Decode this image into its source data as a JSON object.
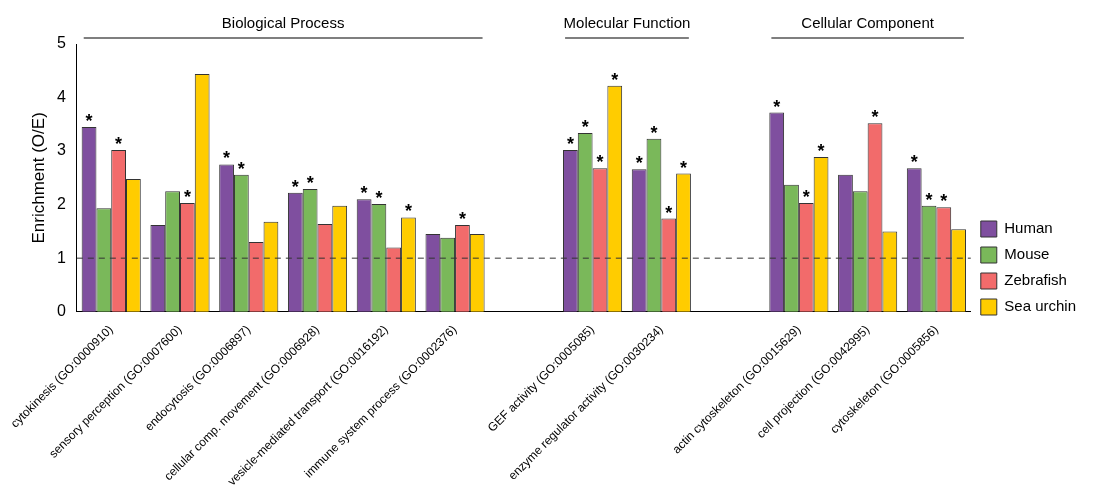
{
  "chart_data": {
    "type": "bar",
    "ylabel": "Enrichment (O/E)",
    "categories": [
      "cytokinesis (GO:0000910)",
      "sensory perception (GO:0007600)",
      "endocytosis (GO:0006897)",
      "cellular comp. movement (GO:0006928)",
      "vesicle-mediated transport (GO:0016192)",
      "immune system process (GO:0002376)",
      null,
      "GEF activity (GO:0005085)",
      "enzyme regulator activity (GO:0030234)",
      null,
      "actin cytoskeleton (GO:0015629)",
      "cell projection (GO:0042995)",
      "cytoskeleton (GO:0005856)"
    ],
    "series": [
      {
        "name": "Human",
        "color": "#7f4f9f",
        "values": [
          3.45,
          1.62,
          2.75,
          2.22,
          2.1,
          1.45,
          null,
          3.02,
          2.66,
          null,
          3.72,
          2.56,
          2.68
        ],
        "value_labels": [
          "*",
          null,
          "*",
          "*",
          "*",
          null,
          null,
          "*",
          "*",
          null,
          "*",
          null,
          "*"
        ]
      },
      {
        "name": "Mouse",
        "color": "#7ab85a",
        "values": [
          1.93,
          2.25,
          2.56,
          2.29,
          2.01,
          1.38,
          null,
          3.34,
          3.23,
          null,
          2.37,
          2.25,
          1.98
        ],
        "value_labels": [
          null,
          null,
          "*",
          "*",
          "*",
          null,
          null,
          "*",
          "*",
          null,
          null,
          null,
          "*"
        ]
      },
      {
        "name": "Zebrafish",
        "color": "#f26b6b",
        "values": [
          3.02,
          2.03,
          1.3,
          1.64,
          1.2,
          1.62,
          null,
          2.68,
          1.74,
          null,
          2.03,
          3.52,
          1.95
        ],
        "value_labels": [
          "*",
          "*",
          null,
          null,
          null,
          "*",
          null,
          "*",
          "*",
          null,
          "*",
          "*",
          "*"
        ]
      },
      {
        "name": "Sea urchin",
        "color": "#ffcc00",
        "values": [
          2.48,
          4.44,
          1.68,
          1.98,
          1.76,
          1.45,
          null,
          4.22,
          2.58,
          null,
          2.89,
          1.5,
          1.54
        ],
        "value_labels": [
          null,
          null,
          null,
          null,
          "*",
          null,
          null,
          "*",
          "*",
          null,
          "*",
          null,
          null
        ]
      }
    ],
    "ylim": [
      0,
      5
    ],
    "yticks": [
      0,
      1,
      2,
      3,
      4,
      5
    ],
    "grid": false,
    "legend": "right",
    "ref_lines": [
      {
        "axis": "y",
        "value": 1,
        "line_style": "dashed"
      }
    ],
    "annotations": [
      "Biological Process",
      "Molecular Function",
      "Cellular Component"
    ]
  }
}
